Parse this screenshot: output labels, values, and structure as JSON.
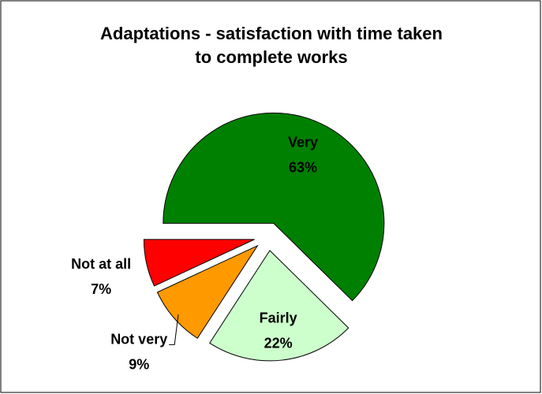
{
  "chart_data": {
    "type": "pie",
    "title": "Adaptations - satisfaction with time taken to complete works",
    "categories": [
      "Very",
      "Fairly",
      "Not very",
      "Not at all"
    ],
    "values": [
      63,
      22,
      9,
      7
    ],
    "value_labels": [
      "63%",
      "22%",
      "9%",
      "7%"
    ],
    "colors": [
      "#008000",
      "#ccffcc",
      "#ff9900",
      "#ff0000"
    ]
  }
}
